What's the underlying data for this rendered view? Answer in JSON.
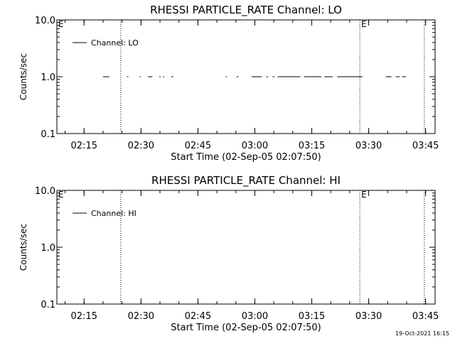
{
  "footer": {
    "timestamp": "19-Oct-2021 16:15"
  },
  "chart_data": [
    {
      "type": "line",
      "title": "RHESSI PARTICLE_RATE Channel: LO",
      "xlabel": "Start Time (02-Sep-05 02:07:50)",
      "ylabel": "Counts/sec",
      "y_scale": "log",
      "ylim": [
        0.1,
        10.0
      ],
      "y_ticks": [
        "0.1",
        "1.0",
        "10.0"
      ],
      "xlim": [
        "02:07:50",
        "03:47:30"
      ],
      "x_ticks": [
        "02:15",
        "02:30",
        "02:45",
        "03:00",
        "03:15",
        "03:30",
        "03:45"
      ],
      "grid": false,
      "legend_position": "top-left",
      "series": [
        {
          "name": "Channel: LO",
          "color": "#000000",
          "segments": [
            [
              [
                "02:20:00",
                1.0
              ],
              [
                "02:21:40",
                1.0
              ]
            ],
            [
              [
                "02:26:20",
                1.0
              ],
              [
                "02:26:40",
                1.0
              ]
            ],
            [
              [
                "02:29:40",
                1.0
              ],
              [
                "02:30:00",
                1.0
              ]
            ],
            [
              [
                "02:31:50",
                1.0
              ],
              [
                "02:33:00",
                1.0
              ]
            ],
            [
              [
                "02:34:50",
                1.0
              ],
              [
                "02:35:10",
                1.0
              ]
            ],
            [
              [
                "02:35:50",
                1.0
              ],
              [
                "02:36:10",
                1.0
              ]
            ],
            [
              [
                "02:38:00",
                1.0
              ],
              [
                "02:38:30",
                1.0
              ]
            ],
            [
              [
                "02:52:20",
                1.0
              ],
              [
                "02:52:40",
                1.0
              ]
            ],
            [
              [
                "02:55:10",
                1.0
              ],
              [
                "02:55:40",
                1.0
              ]
            ],
            [
              [
                "02:59:10",
                1.0
              ],
              [
                "03:01:50",
                1.0
              ]
            ],
            [
              [
                "03:03:00",
                1.0
              ],
              [
                "03:03:30",
                1.0
              ]
            ],
            [
              [
                "03:04:40",
                1.0
              ],
              [
                "03:05:10",
                1.0
              ]
            ],
            [
              [
                "03:06:00",
                1.0
              ],
              [
                "03:12:00",
                1.0
              ]
            ],
            [
              [
                "03:13:00",
                1.0
              ],
              [
                "03:17:30",
                1.0
              ]
            ],
            [
              [
                "03:18:20",
                1.0
              ],
              [
                "03:20:30",
                1.0
              ]
            ],
            [
              [
                "03:21:40",
                1.0
              ],
              [
                "03:28:20",
                1.0
              ]
            ],
            [
              [
                "03:34:30",
                1.0
              ],
              [
                "03:36:00",
                1.0
              ]
            ],
            [
              [
                "03:37:10",
                1.0
              ],
              [
                "03:38:10",
                1.0
              ]
            ],
            [
              [
                "03:38:50",
                1.0
              ],
              [
                "03:39:50",
                1.0
              ]
            ]
          ]
        }
      ],
      "vlines": [
        {
          "time": "02:24:40",
          "label": ""
        },
        {
          "time": "03:27:40",
          "label": "E"
        },
        {
          "time": "03:44:40",
          "label": ""
        }
      ],
      "corner_label": "E"
    },
    {
      "type": "line",
      "title": "RHESSI PARTICLE_RATE Channel: HI",
      "xlabel": "Start Time (02-Sep-05 02:07:50)",
      "ylabel": "Counts/sec",
      "y_scale": "log",
      "ylim": [
        0.1,
        10.0
      ],
      "y_ticks": [
        "0.1",
        "1.0",
        "10.0"
      ],
      "xlim": [
        "02:07:50",
        "03:47:30"
      ],
      "x_ticks": [
        "02:15",
        "02:30",
        "02:45",
        "03:00",
        "03:15",
        "03:30",
        "03:45"
      ],
      "grid": false,
      "legend_position": "top-left",
      "series": [
        {
          "name": "Channel: HI",
          "color": "#000000",
          "segments": []
        }
      ],
      "vlines": [
        {
          "time": "02:24:40",
          "label": ""
        },
        {
          "time": "03:27:40",
          "label": "E"
        },
        {
          "time": "03:44:40",
          "label": ""
        }
      ],
      "corner_label": "E"
    }
  ]
}
